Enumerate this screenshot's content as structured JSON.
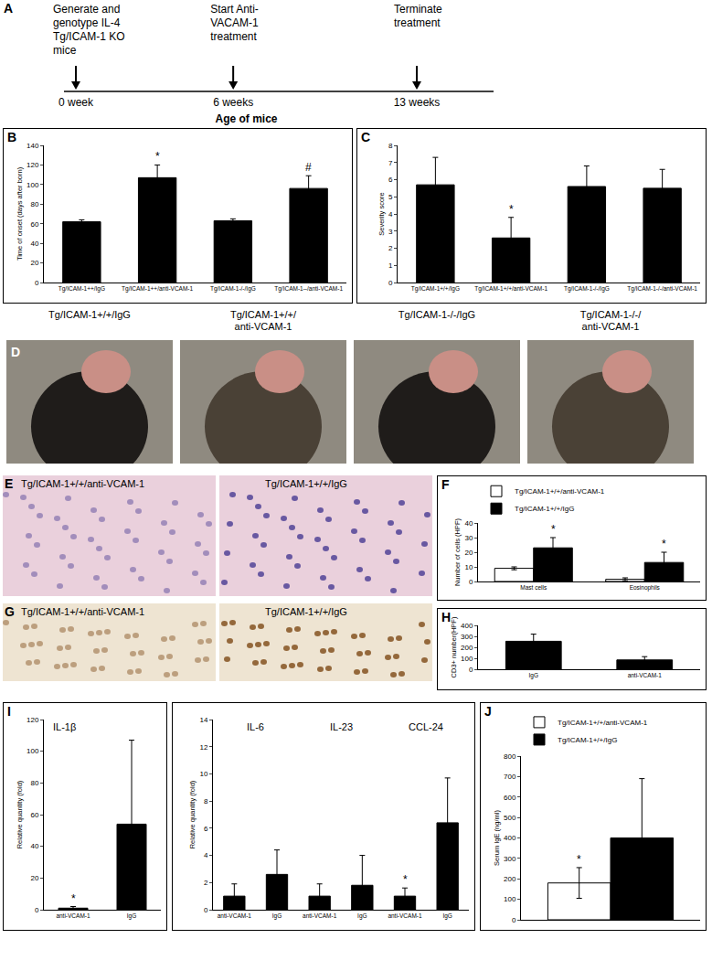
{
  "timeline": {
    "panel": "A",
    "axis_label": "Age of mice",
    "events": [
      {
        "value": 0,
        "tick_label": "0 week",
        "label_lines": [
          "Generate and",
          "genotype IL-4",
          "Tg/ICAM-1 KO",
          "mice"
        ]
      },
      {
        "value": 6,
        "tick_label": "6 weeks",
        "label_lines": [
          "Start Anti-",
          "VACAM-1",
          "treatment"
        ]
      },
      {
        "value": 13,
        "tick_label": "13 weeks",
        "label_lines": [
          "Terminate",
          "treatment"
        ]
      }
    ]
  },
  "photos": {
    "panel": "D",
    "captions": [
      [
        "Tg/ICAM-1+/+/IgG"
      ],
      [
        "Tg/ICAM-1+/+/",
        "anti-VCAM-1"
      ],
      [
        "Tg/ICAM-1-/-/IgG"
      ],
      [
        "Tg/ICAM-1-/-/",
        "anti-VCAM-1"
      ]
    ]
  },
  "histology": {
    "panel": "E",
    "labels": [
      "Tg/ICAM-1+/+/anti-VCAM-1",
      "Tg/ICAM-1+/+/IgG"
    ]
  },
  "immunostaining": {
    "panel": "G",
    "labels": [
      "Tg/ICAM-1+/+/anti-VCAM-1",
      "Tg/ICAM-1+/+/IgG"
    ]
  },
  "chart_data": [
    {
      "panel": "B",
      "type": "bar",
      "categories": [
        "Tg/ICAM-1++/IgG",
        "Tg/ICAM-1++/anti-VCAM-1",
        "Tg/ICAM-1-/-/IgG",
        "Tg/ICAM-1--/anti-VCAM-1"
      ],
      "values": [
        62,
        107,
        63,
        96
      ],
      "errors": [
        2,
        13,
        2,
        13
      ],
      "significance": [
        null,
        "*",
        null,
        "#"
      ],
      "color": "#000000",
      "y_label": "Time of onset (days after born)",
      "ylim": [
        0,
        140
      ],
      "yticks": [
        0,
        20,
        40,
        60,
        80,
        100,
        120,
        140
      ]
    },
    {
      "panel": "C",
      "type": "bar",
      "categories": [
        "Tg/ICAM-1+/+/IgG",
        "Tg/ICAM-1+/+/anti-VCAM-1",
        "Tg/ICAM-1-/-/IgG",
        "Tg/ICAM-1-/-/anti-VCAM-1"
      ],
      "values": [
        5.7,
        2.6,
        5.6,
        5.5
      ],
      "errors": [
        1.6,
        1.2,
        1.2,
        1.1
      ],
      "significance": [
        null,
        "*",
        null,
        null
      ],
      "color": "#000000",
      "y_label": "Severity score",
      "ylim": [
        0,
        8
      ],
      "yticks": [
        0,
        1,
        2,
        3,
        4,
        5,
        6,
        7,
        8
      ]
    },
    {
      "panel": "F",
      "type": "bar",
      "categories": [
        "Mast cells",
        "Eosinophils"
      ],
      "series": [
        {
          "name": "Tg/ICAM-1+/+/anti-VCAM-1",
          "color": "#ffffff",
          "values": [
            9,
            1.5
          ],
          "errors": [
            1,
            1
          ]
        },
        {
          "name": "Tg/ICAM-1+/+/IgG",
          "color": "#000000",
          "values": [
            23,
            13
          ],
          "errors": [
            7,
            7
          ],
          "significance": [
            "*",
            "*"
          ]
        }
      ],
      "y_label": "Number of cells (HPF)",
      "ylim": [
        0,
        40
      ],
      "yticks": [
        0,
        10,
        20,
        30,
        40
      ],
      "legend": "top"
    },
    {
      "panel": "H",
      "type": "bar",
      "categories": [
        "IgG",
        "anti-VCAM-1"
      ],
      "values": [
        255,
        85
      ],
      "errors": [
        65,
        30
      ],
      "color": "#000000",
      "y_label": "CD3+ number(HPF)",
      "ylim": [
        0,
        400
      ],
      "yticks": [
        0,
        100,
        200,
        300,
        400
      ]
    },
    {
      "panel": "I",
      "type": "bar",
      "title": "IL-1β",
      "categories": [
        "anti-VCAM-1",
        "IgG"
      ],
      "values": [
        1,
        54
      ],
      "errors": [
        1,
        53
      ],
      "significance": [
        "*",
        null
      ],
      "color": "#000000",
      "y_label": "Relative quantity (fold)",
      "ylim": [
        0,
        120
      ],
      "yticks": [
        0,
        20,
        40,
        60,
        80,
        100,
        120
      ]
    },
    {
      "type": "bar",
      "group_labels": [
        "IL-6",
        "IL-23",
        "CCL-24"
      ],
      "categories": [
        "anti-VCAM-1",
        "IgG",
        "anti-VCAM-1",
        "IgG",
        "anti-VCAM-1",
        "IgG"
      ],
      "values": [
        1,
        2.6,
        1,
        1.8,
        1,
        6.4
      ],
      "errors": [
        0.9,
        1.8,
        0.9,
        2.2,
        0.6,
        3.3
      ],
      "significance": [
        null,
        null,
        null,
        null,
        "*",
        null
      ],
      "color": "#000000",
      "y_label": "Relative quantity (fold)",
      "ylim": [
        0,
        14
      ],
      "yticks": [
        0,
        2,
        4,
        6,
        8,
        10,
        12,
        14
      ]
    },
    {
      "panel": "J",
      "type": "bar",
      "categories": [
        null
      ],
      "series": [
        {
          "name": "Tg/ICAM-1+/+/anti-VCAM-1",
          "color": "#ffffff",
          "values": [
            180
          ],
          "errors": [
            75
          ],
          "significance": [
            "*"
          ]
        },
        {
          "name": "Tg/ICAM-1+/+/IgG",
          "color": "#000000",
          "values": [
            400
          ],
          "errors": [
            290
          ]
        }
      ],
      "y_label": "Serum IgE (ng/ml)",
      "ylim": [
        0,
        800
      ],
      "yticks": [
        0,
        100,
        200,
        300,
        400,
        500,
        600,
        700,
        800
      ],
      "legend": "top",
      "tick_labels": "y"
    }
  ]
}
